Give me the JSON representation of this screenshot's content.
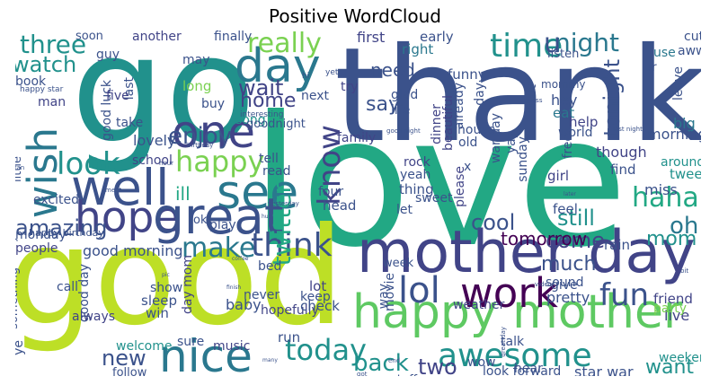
{
  "title": "Positive WordCloud",
  "palette": [
    "#440154",
    "#3b528b",
    "#21918c",
    "#5ec962",
    "#fde725",
    "#2a788e",
    "#22a884",
    "#7ad151",
    "#bddf26",
    "#414487"
  ],
  "words": [
    {
      "t": "love",
      "c": "#22a884"
    },
    {
      "t": "good",
      "c": "#bddf26"
    },
    {
      "t": "thank",
      "c": "#3b528b"
    },
    {
      "t": "go",
      "c": "#21918c"
    },
    {
      "t": "mother day",
      "c": "#414487"
    },
    {
      "t": "happy mother",
      "c": "#5ec962"
    },
    {
      "t": "nice",
      "c": "#2a788e"
    },
    {
      "t": "work",
      "c": "#440154"
    },
    {
      "t": "today",
      "c": "#21918c"
    },
    {
      "t": "well",
      "c": "#3b528b"
    },
    {
      "t": "one",
      "c": "#414487"
    },
    {
      "t": "day",
      "c": "#2a788e"
    },
    {
      "t": "see",
      "c": "#2a788e"
    },
    {
      "t": "hope",
      "c": "#414487"
    },
    {
      "t": "great",
      "c": "#3b528b"
    },
    {
      "t": "wish",
      "c": "#2a788e"
    },
    {
      "t": "lol",
      "c": "#3b528b"
    },
    {
      "t": "awesome",
      "c": "#21918c"
    },
    {
      "t": "fun",
      "c": "#3b528b"
    },
    {
      "t": "time",
      "c": "#21918c"
    },
    {
      "t": "happy",
      "c": "#7ad151"
    },
    {
      "t": "look",
      "c": "#21918c"
    },
    {
      "t": "make",
      "c": "#2a788e"
    },
    {
      "t": "think",
      "c": "#3b528b"
    },
    {
      "t": "know",
      "c": "#414487"
    },
    {
      "t": "really",
      "c": "#7ad151"
    },
    {
      "t": "night",
      "c": "#2a788e"
    },
    {
      "t": "haha",
      "c": "#22a884"
    },
    {
      "t": "u",
      "c": "#3b528b"
    },
    {
      "t": "twitter",
      "c": "#22a884"
    },
    {
      "t": "three",
      "c": "#21918c"
    },
    {
      "t": "watch",
      "c": "#21918c"
    },
    {
      "t": "enjoy",
      "c": "#3b528b"
    },
    {
      "t": "home",
      "c": "#414487"
    },
    {
      "t": "wait",
      "c": "#414487"
    },
    {
      "t": "say",
      "c": "#3b528b"
    },
    {
      "t": "need",
      "c": "#3b528b"
    },
    {
      "t": "tonight",
      "c": "#3b528b"
    },
    {
      "t": "oh",
      "c": "#2a788e"
    },
    {
      "t": "mom",
      "c": "#21918c"
    },
    {
      "t": "cool",
      "c": "#3b528b"
    },
    {
      "t": "come",
      "c": "#414487"
    },
    {
      "t": "still",
      "c": "#21918c"
    },
    {
      "t": "much",
      "c": "#3b528b"
    },
    {
      "t": "tomorrow",
      "c": "#440154"
    },
    {
      "t": "amazing",
      "c": "#3b528b"
    },
    {
      "t": "back",
      "c": "#21918c"
    },
    {
      "t": "two",
      "c": "#414487"
    },
    {
      "t": "want",
      "c": "#21918c"
    },
    {
      "t": "new",
      "c": "#3b528b"
    },
    {
      "t": "ill",
      "c": "#22a884"
    },
    {
      "t": "good morning",
      "c": "#3b528b"
    },
    {
      "t": "first",
      "c": "#414487"
    },
    {
      "t": "early",
      "c": "#3b528b"
    },
    {
      "t": "right",
      "c": "#2a788e"
    },
    {
      "t": "last",
      "c": "#3b528b"
    },
    {
      "t": "good luck",
      "c": "#3b528b"
    },
    {
      "t": "another",
      "c": "#414487"
    },
    {
      "t": "finally",
      "c": "#3b528b"
    },
    {
      "t": "soon",
      "c": "#3b528b"
    },
    {
      "t": "guy",
      "c": "#3b528b"
    },
    {
      "t": "may",
      "c": "#3b528b"
    },
    {
      "t": "long",
      "c": "#7ad151"
    },
    {
      "t": "song",
      "c": "#21918c"
    },
    {
      "t": "cute",
      "c": "#3b528b"
    },
    {
      "t": "aww",
      "c": "#3b528b"
    },
    {
      "t": "use",
      "c": "#2a788e"
    },
    {
      "t": "listen",
      "c": "#3b528b"
    },
    {
      "t": "ur",
      "c": "#3b528b"
    },
    {
      "t": "hey",
      "c": "#3b528b"
    },
    {
      "t": "eat",
      "c": "#2a788e"
    },
    {
      "t": "help",
      "c": "#414487"
    },
    {
      "t": "big",
      "c": "#2a788e"
    },
    {
      "t": "morning",
      "c": "#3b528b"
    },
    {
      "t": "around",
      "c": "#21918c"
    },
    {
      "t": "tweet",
      "c": "#21918c"
    },
    {
      "t": "miss",
      "c": "#3b528b"
    },
    {
      "t": "though",
      "c": "#414487"
    },
    {
      "t": "find",
      "c": "#3b528b"
    },
    {
      "t": "rain",
      "c": "#3b528b"
    },
    {
      "t": "feel",
      "c": "#3b528b"
    },
    {
      "t": "give",
      "c": "#3b528b"
    },
    {
      "t": "sound",
      "c": "#3b528b"
    },
    {
      "t": "friend",
      "c": "#414487"
    },
    {
      "t": "live",
      "c": "#414487"
    },
    {
      "t": "party",
      "c": "#7ad151"
    },
    {
      "t": "weekend",
      "c": "#21918c"
    },
    {
      "t": "star war",
      "c": "#3b528b"
    },
    {
      "t": "look forward",
      "c": "#3b528b"
    },
    {
      "t": "pretty",
      "c": "#3b528b"
    },
    {
      "t": "weather",
      "c": "#414487"
    },
    {
      "t": "talk",
      "c": "#3b528b"
    },
    {
      "t": "hear",
      "c": "#3b528b"
    },
    {
      "t": "stuff",
      "c": "#3b528b"
    },
    {
      "t": "wow",
      "c": "#3b528b"
    },
    {
      "t": "everyone",
      "c": "#414487"
    },
    {
      "t": "follow",
      "c": "#3b528b"
    },
    {
      "t": "welcome",
      "c": "#21918c"
    },
    {
      "t": "sure",
      "c": "#3b528b"
    },
    {
      "t": "music",
      "c": "#414487"
    },
    {
      "t": "run",
      "c": "#3b528b"
    },
    {
      "t": "hopefully",
      "c": "#414487"
    },
    {
      "t": "check",
      "c": "#3b528b"
    },
    {
      "t": "keep",
      "c": "#3b528b"
    },
    {
      "t": "lot",
      "c": "#414487"
    },
    {
      "t": "never",
      "c": "#3b528b"
    },
    {
      "t": "baby",
      "c": "#3b528b"
    },
    {
      "t": "win",
      "c": "#3b528b"
    },
    {
      "t": "sleep",
      "c": "#3b528b"
    },
    {
      "t": "show",
      "c": "#3b528b"
    },
    {
      "t": "day mom",
      "c": "#414487"
    },
    {
      "t": "good day",
      "c": "#3b528b"
    },
    {
      "t": "always",
      "c": "#414487"
    },
    {
      "t": "call",
      "c": "#3b528b"
    },
    {
      "t": "people",
      "c": "#414487"
    },
    {
      "t": "excited",
      "c": "#3b528b"
    },
    {
      "t": "monday",
      "c": "#3b528b"
    },
    {
      "t": "school",
      "c": "#414487"
    },
    {
      "t": "lovely",
      "c": "#3b528b"
    },
    {
      "t": "little",
      "c": "#3b528b"
    },
    {
      "t": "man",
      "c": "#414487"
    },
    {
      "t": "five",
      "c": "#414487"
    },
    {
      "t": "book",
      "c": "#3b528b"
    },
    {
      "t": "take",
      "c": "#3b528b"
    },
    {
      "t": "buy",
      "c": "#3b528b"
    },
    {
      "t": "tell",
      "c": "#3b528b"
    },
    {
      "t": "read",
      "c": "#3b528b"
    },
    {
      "t": "play",
      "c": "#3b528b"
    },
    {
      "t": "ok",
      "c": "#3b528b"
    },
    {
      "t": "next",
      "c": "#3b528b"
    },
    {
      "t": "try",
      "c": "#414487"
    },
    {
      "t": "glad",
      "c": "#3b528b"
    },
    {
      "t": "life",
      "c": "#3b528b"
    },
    {
      "t": "dinner",
      "c": "#414487"
    },
    {
      "t": "beautiful",
      "c": "#414487"
    },
    {
      "t": "already",
      "c": "#3b528b"
    },
    {
      "t": "funny",
      "c": "#3b528b"
    },
    {
      "t": "day",
      "c": "#3b528b"
    },
    {
      "t": "war day",
      "c": "#3b528b"
    },
    {
      "t": "house",
      "c": "#3b528b"
    },
    {
      "t": "old",
      "c": "#3b528b"
    },
    {
      "t": "rock",
      "c": "#414487"
    },
    {
      "t": "yeah",
      "c": "#3b528b"
    },
    {
      "t": "family",
      "c": "#414487"
    },
    {
      "t": "thing",
      "c": "#3b528b"
    },
    {
      "t": "sweet",
      "c": "#3b528b"
    },
    {
      "t": "let",
      "c": "#3b528b"
    },
    {
      "t": "please",
      "c": "#414487"
    },
    {
      "t": "x",
      "c": "#3b528b"
    },
    {
      "t": "sunday",
      "c": "#3b528b"
    },
    {
      "t": "girl",
      "c": "#414487"
    },
    {
      "t": "start",
      "c": "#3b528b"
    },
    {
      "t": "world",
      "c": "#3b528b"
    },
    {
      "t": "free",
      "c": "#3b528b"
    },
    {
      "t": "yay",
      "c": "#3b528b"
    },
    {
      "t": "leave",
      "c": "#3b528b"
    },
    {
      "t": "four",
      "c": "#3b528b"
    },
    {
      "t": "head",
      "c": "#3b528b"
    },
    {
      "t": "week",
      "c": "#3b528b"
    },
    {
      "t": "movie",
      "c": "#3b528b"
    },
    {
      "t": "bed",
      "c": "#3b528b"
    },
    {
      "t": "ye",
      "c": "#3b528b"
    },
    {
      "t": "way",
      "c": "#3b528b"
    },
    {
      "t": "something",
      "c": "#3b528b"
    },
    {
      "t": "year",
      "c": "#3b528b"
    },
    {
      "t": "mommy",
      "c": "#3b528b"
    },
    {
      "t": "goodnight",
      "c": "#3b528b"
    },
    {
      "t": "happy birthday",
      "c": "#3b528b"
    },
    {
      "t": "happy star",
      "c": "#3b528b"
    },
    {
      "t": "interesting",
      "c": "#3b528b"
    },
    {
      "t": "yet",
      "c": "#3b528b"
    },
    {
      "t": "hi",
      "c": "#3b528b"
    },
    {
      "t": "guess",
      "c": "#3b528b"
    },
    {
      "t": "good night",
      "c": "#3b528b"
    },
    {
      "t": "last night",
      "c": "#3b528b"
    },
    {
      "t": "later",
      "c": "#3b528b"
    },
    {
      "t": "video",
      "c": "#3b528b"
    },
    {
      "t": "hour",
      "c": "#3b528b"
    },
    {
      "t": "meet",
      "c": "#3b528b"
    },
    {
      "t": "fan",
      "c": "#3b528b"
    },
    {
      "t": "birthday",
      "c": "#3b528b"
    },
    {
      "t": "yesterday",
      "c": "#3b528b"
    },
    {
      "t": "hug",
      "c": "#3b528b"
    },
    {
      "t": "coffee",
      "c": "#3b528b"
    },
    {
      "t": "finish",
      "c": "#3b528b"
    },
    {
      "t": "pic",
      "c": "#3b528b"
    },
    {
      "t": "many",
      "c": "#3b528b"
    },
    {
      "t": "end",
      "c": "#3b528b"
    },
    {
      "t": "great day",
      "c": "#3b528b"
    },
    {
      "t": "got",
      "c": "#3b528b"
    },
    {
      "t": "bit",
      "c": "#3b528b"
    }
  ]
}
